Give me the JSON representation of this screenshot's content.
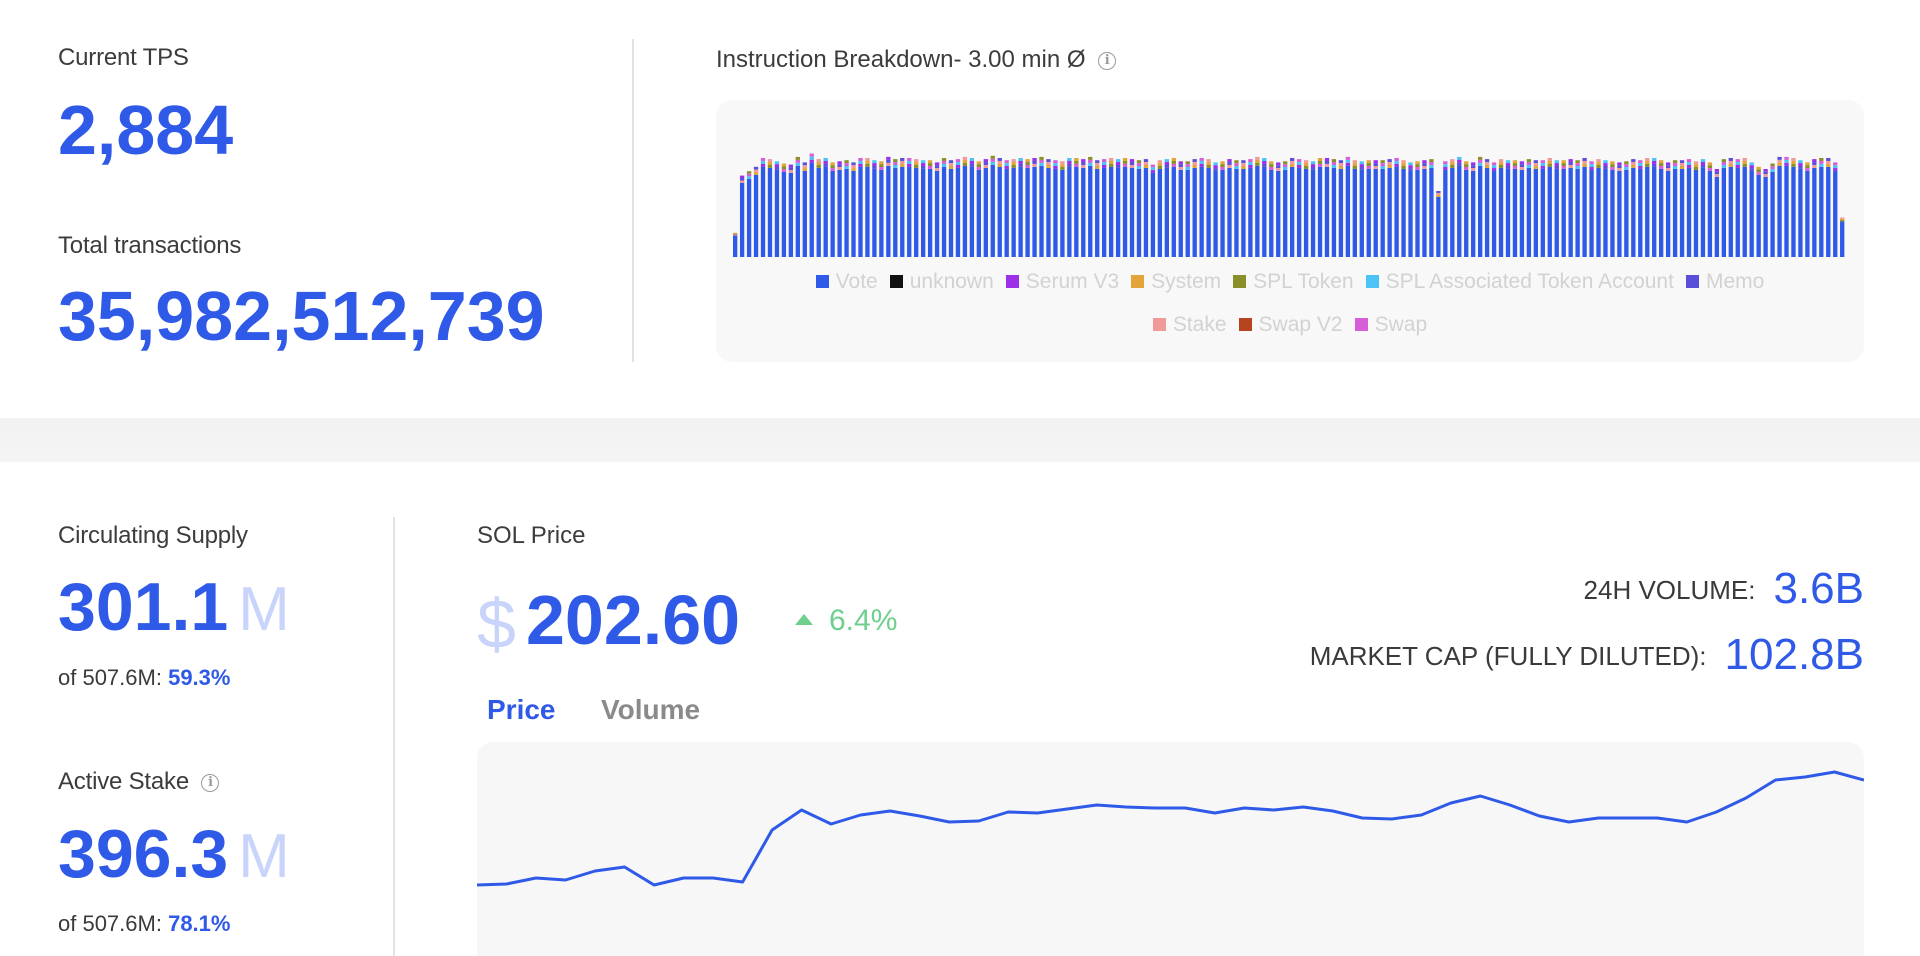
{
  "network": {
    "current_tps_label": "Current TPS",
    "current_tps_value": "2,884",
    "total_tx_label": "Total transactions",
    "total_tx_value": "35,982,512,739"
  },
  "instruction_breakdown": {
    "title": "Instruction Breakdown- 3.00 min Ø",
    "info_icon": "info-icon",
    "legend": [
      {
        "name": "Vote",
        "color": "#2f5ae8"
      },
      {
        "name": "unknown",
        "color": "#111111"
      },
      {
        "name": "Serum V3",
        "color": "#9b30e8"
      },
      {
        "name": "System",
        "color": "#e3a43a"
      },
      {
        "name": "SPL Token",
        "color": "#8a8f2a"
      },
      {
        "name": "SPL Associated Token Account",
        "color": "#4cc3f5"
      },
      {
        "name": "Memo",
        "color": "#5b4fd9"
      },
      {
        "name": "Stake",
        "color": "#f09a9a"
      },
      {
        "name": "Swap V2",
        "color": "#b5441f"
      },
      {
        "name": "Swap",
        "color": "#d65ed6"
      }
    ]
  },
  "supply": {
    "circulating_label": "Circulating Supply",
    "circulating_value": "301.1",
    "circulating_unit": "M",
    "circulating_of": "of 507.6M: ",
    "circulating_pct": "59.3%",
    "active_stake_label": "Active Stake",
    "active_stake_value": "396.3",
    "active_stake_unit": "M",
    "active_stake_of": "of 507.6M: ",
    "active_stake_pct": "78.1%"
  },
  "sol_price": {
    "title": "SOL Price",
    "currency_symbol": "$",
    "price": "202.60",
    "change": "6.4%",
    "volume_label": "24H VOLUME:",
    "volume_value": "3.6B",
    "market_cap_label": "MARKET CAP (FULLY DILUTED):",
    "market_cap_value": "102.8B",
    "tabs": [
      "Price",
      "Volume"
    ],
    "active_tab": "Price",
    "line_color": "#2f5ae8"
  },
  "chart_data": [
    {
      "type": "bar",
      "stacked": true,
      "title": "Instruction Breakdown- 3.00 min Ø",
      "series_names": [
        "Vote",
        "unknown",
        "Serum V3",
        "System",
        "SPL Token",
        "SPL Associated Token Account",
        "Memo",
        "Stake",
        "Swap V2",
        "Swap"
      ],
      "grid": false,
      "legend_position": "bottom",
      "total_values": [
        0.22,
        0.74,
        0.78,
        0.82,
        0.9,
        0.89,
        0.87,
        0.85,
        0.84,
        0.91,
        0.86,
        0.94,
        0.89,
        0.9,
        0.86,
        0.87,
        0.88,
        0.86,
        0.9,
        0.9,
        0.88,
        0.87,
        0.91,
        0.89,
        0.9,
        0.9,
        0.89,
        0.88,
        0.88,
        0.86,
        0.9,
        0.88,
        0.89,
        0.91,
        0.9,
        0.87,
        0.89,
        0.92,
        0.9,
        0.88,
        0.89,
        0.9,
        0.89,
        0.9,
        0.91,
        0.89,
        0.88,
        0.87,
        0.9,
        0.9,
        0.89,
        0.91,
        0.88,
        0.89,
        0.9,
        0.89,
        0.9,
        0.89,
        0.88,
        0.89,
        0.84,
        0.88,
        0.89,
        0.9,
        0.87,
        0.87,
        0.89,
        0.9,
        0.89,
        0.86,
        0.87,
        0.89,
        0.88,
        0.88,
        0.89,
        0.91,
        0.9,
        0.87,
        0.86,
        0.87,
        0.9,
        0.89,
        0.88,
        0.87,
        0.9,
        0.9,
        0.89,
        0.88,
        0.91,
        0.88,
        0.87,
        0.88,
        0.88,
        0.88,
        0.89,
        0.9,
        0.88,
        0.86,
        0.87,
        0.88,
        0.89,
        0.6,
        0.87,
        0.89,
        0.91,
        0.87,
        0.86,
        0.91,
        0.89,
        0.86,
        0.89,
        0.88,
        0.88,
        0.87,
        0.89,
        0.88,
        0.88,
        0.9,
        0.88,
        0.88,
        0.89,
        0.88,
        0.9,
        0.87,
        0.89,
        0.88,
        0.87,
        0.86,
        0.87,
        0.89,
        0.88,
        0.9,
        0.9,
        0.88,
        0.86,
        0.88,
        0.88,
        0.89,
        0.87,
        0.89,
        0.86,
        0.8,
        0.89,
        0.9,
        0.89,
        0.9,
        0.86,
        0.82,
        0.8,
        0.85,
        0.91,
        0.91,
        0.9,
        0.88,
        0.86,
        0.89,
        0.9,
        0.9,
        0.86,
        0.36
      ]
    },
    {
      "type": "line",
      "title": "SOL Price",
      "series": [
        {
          "name": "Price",
          "values": [
            0.07,
            0.08,
            0.14,
            0.12,
            0.21,
            0.25,
            0.07,
            0.14,
            0.14,
            0.1,
            0.62,
            0.82,
            0.68,
            0.77,
            0.81,
            0.76,
            0.7,
            0.71,
            0.8,
            0.79,
            0.83,
            0.87,
            0.85,
            0.84,
            0.84,
            0.79,
            0.84,
            0.82,
            0.85,
            0.81,
            0.74,
            0.73,
            0.77,
            0.89,
            0.96,
            0.87,
            0.76,
            0.7,
            0.74,
            0.74,
            0.74,
            0.7,
            0.8,
            0.94,
            1.12,
            1.15,
            1.2,
            1.12
          ]
        }
      ],
      "grid": false
    }
  ]
}
